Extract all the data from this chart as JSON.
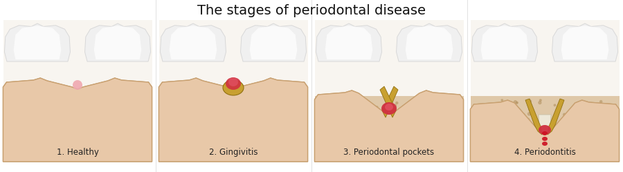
{
  "title": "The stages of periodontal disease",
  "title_fontsize": 14,
  "labels": [
    "1. Healthy",
    "2. Gingivitis",
    "3. Periodontal pockets",
    "4. Periodontitis"
  ],
  "label_fontsize": 8.5,
  "background_color": "#ffffff",
  "tooth_white": "#f0f0f0",
  "tooth_white2": "#fafafa",
  "tooth_outline": "#d8d8d8",
  "tooth_crown_top": "#e8e8e8",
  "root_cream": "#ede8d8",
  "root_outline": "#c8c0a8",
  "gum_light": "#e8c8a8",
  "gum_mid": "#dbb888",
  "gum_dark": "#c8a070",
  "bone_fill": "#dfc8a8",
  "bone_dot": "#b89868",
  "tartar": "#c8a030",
  "tartar_dark": "#907010",
  "inflamed": "#d03040",
  "inflamed2": "#e05060",
  "pink_healthy": "#f0a8b0",
  "blood_red": "#cc1020"
}
